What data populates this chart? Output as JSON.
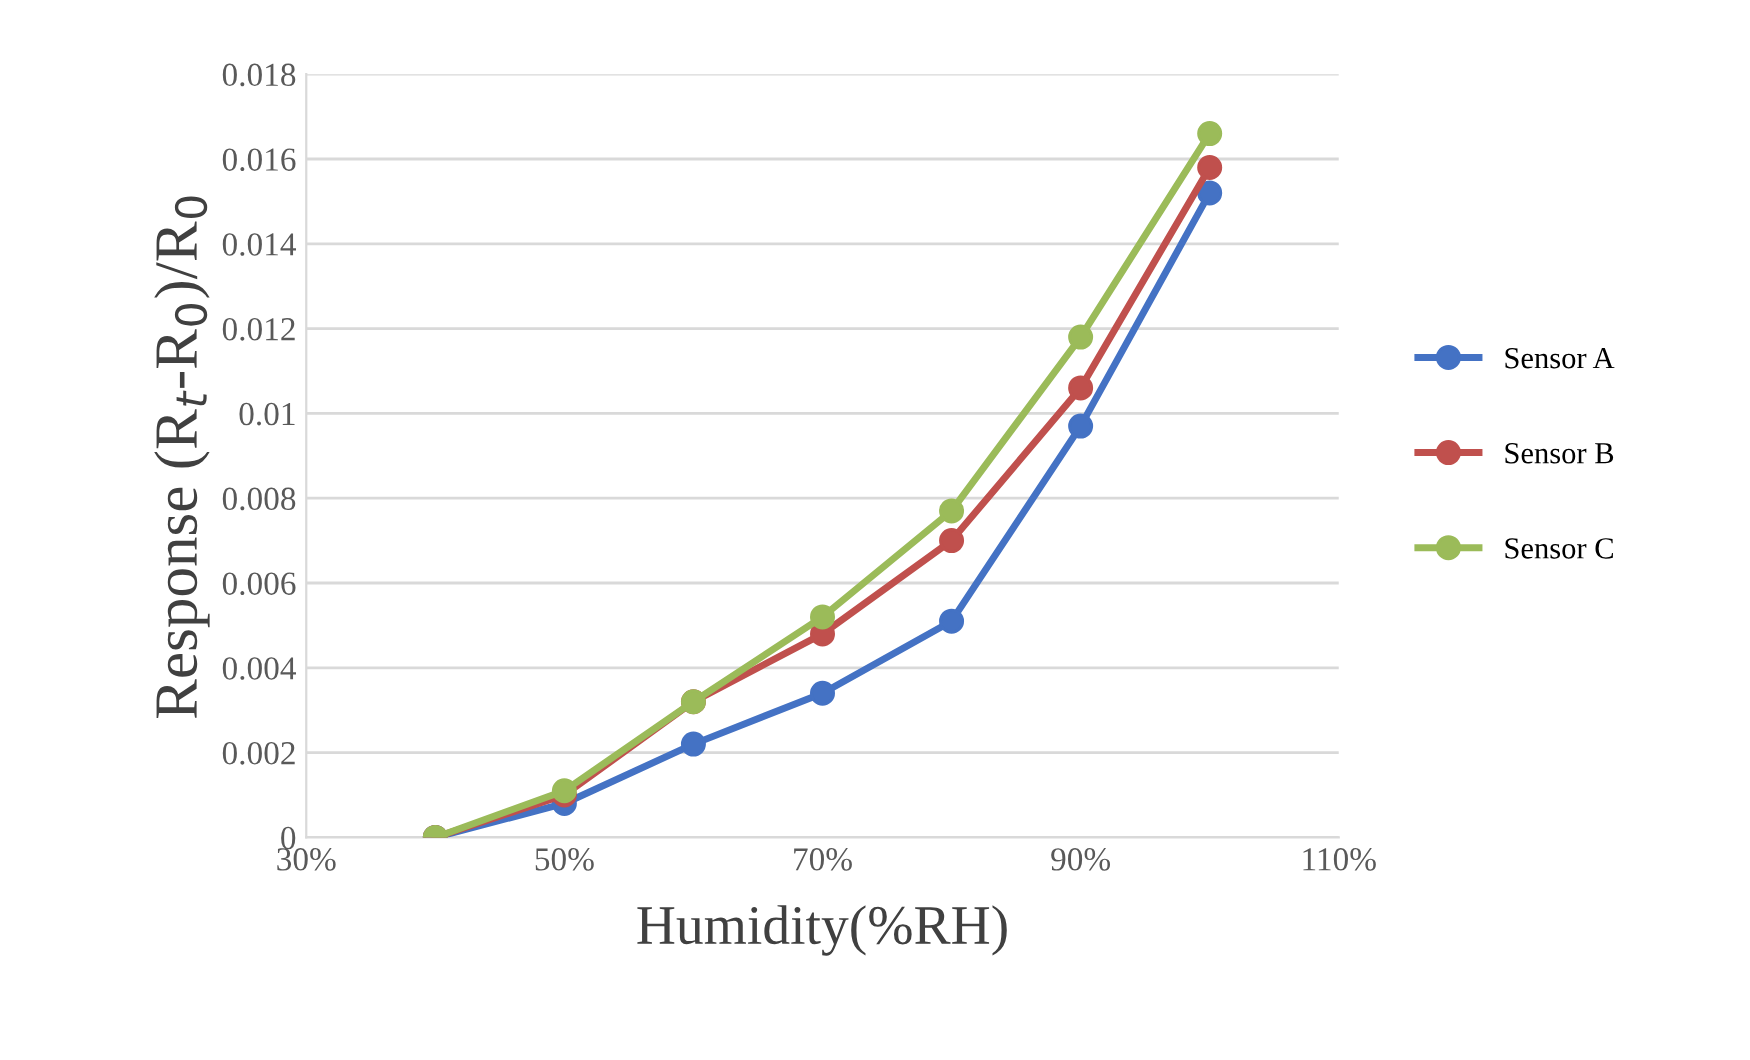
{
  "chart_data": {
    "type": "line",
    "xlabel": "Humidity(%RH)",
    "ylabel": "Response (R$_{t}$-R$_{0}$)/R$_{0}$",
    "x": [
      40,
      50,
      60,
      70,
      80,
      90,
      100
    ],
    "series": [
      {
        "name": "Sensor A",
        "color": "#4472c4",
        "values": [
          0,
          0.0008,
          0.0022,
          0.0034,
          0.0051,
          0.0097,
          0.0152
        ]
      },
      {
        "name": "Sensor B",
        "color": "#c0504d",
        "values": [
          0,
          0.001,
          0.0032,
          0.0048,
          0.007,
          0.0106,
          0.0158
        ]
      },
      {
        "name": "Sensor C",
        "color": "#9bbb59",
        "values": [
          0,
          0.0011,
          0.0032,
          0.0052,
          0.0077,
          0.0118,
          0.0166
        ]
      }
    ],
    "xlim": [
      30,
      110
    ],
    "xticks": [
      {
        "value": 30,
        "label": "30%"
      },
      {
        "value": 50,
        "label": "50%"
      },
      {
        "value": 70,
        "label": "70%"
      },
      {
        "value": 90,
        "label": "90%"
      },
      {
        "value": 110,
        "label": "110%"
      }
    ],
    "ylim": [
      0,
      0.018
    ],
    "yticks": [
      {
        "value": 0,
        "label": "0"
      },
      0.002,
      0.004,
      0.006,
      0.008,
      {
        "value": 0.01,
        "label": "0.01"
      },
      0.012,
      0.014,
      0.016,
      0.018
    ],
    "grid": "y",
    "legend": "right",
    "marker": "circle",
    "line_style": "solid"
  }
}
